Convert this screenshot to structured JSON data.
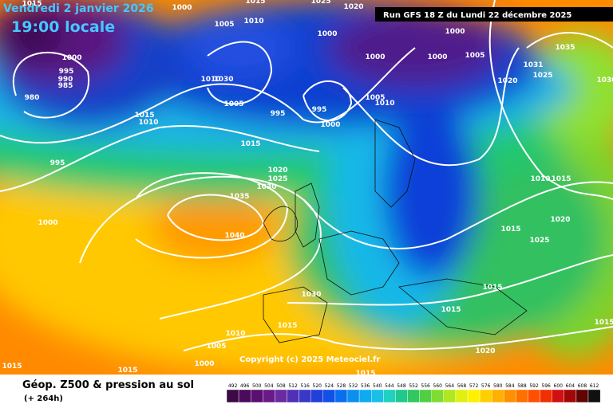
{
  "header": {
    "date": "Vendredi 2 janvier 2026",
    "time": "19:00 locale",
    "run": "Run GFS 18 Z du Lundi 22 décembre 2025"
  },
  "copyright": "Copyright (c) 2025 Meteociel.fr",
  "footer": {
    "title": "Géop. Z500 & pression au sol",
    "lead": "(+ 264h)"
  },
  "legend_ticks": [
    492,
    496,
    500,
    504,
    508,
    512,
    516,
    520,
    524,
    528,
    532,
    536,
    540,
    544,
    548,
    552,
    556,
    560,
    564,
    568,
    572,
    576,
    580,
    584,
    588,
    592,
    596,
    600,
    604,
    608,
    612
  ],
  "isobar_labels": [
    "1015",
    "1000",
    "1005",
    "1010",
    "1015",
    "1025",
    "1020",
    "1000",
    "1000",
    "1005",
    "1000",
    "1000",
    "1035",
    "1031",
    "1025",
    "1020",
    "1010",
    "1030",
    "1005",
    "995",
    "995",
    "1000",
    "1005",
    "1010",
    "1000",
    "995",
    "990",
    "985",
    "980",
    "1015",
    "1010",
    "1015",
    "995",
    "1020",
    "1025",
    "1030",
    "1035",
    "1040",
    "1000",
    "1010",
    "1015",
    "1020",
    "1015",
    "1025",
    "1030",
    "1015",
    "1015",
    "1015",
    "1010",
    "1005",
    "1000",
    "1015",
    "1015",
    "1015",
    "1020",
    "1030",
    "1015"
  ]
}
